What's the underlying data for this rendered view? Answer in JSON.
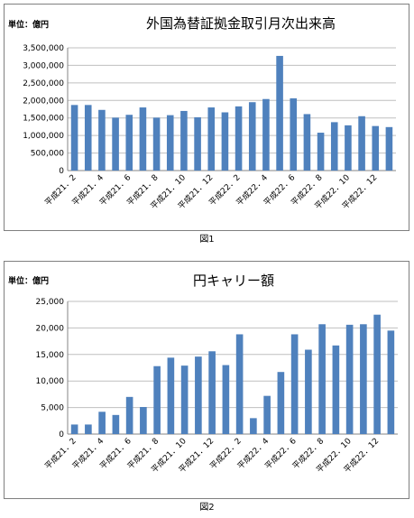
{
  "charts": [
    {
      "unit_label": "単位：億円",
      "caption": "図1"
    },
    {
      "unit_label": "単位：億円",
      "caption": "図2"
    }
  ],
  "chart_data": [
    {
      "type": "bar",
      "title": "外国為替証拠金取引月次出来高",
      "ylim": [
        0,
        3500000
      ],
      "yticks": [
        0,
        500000,
        1000000,
        1500000,
        2000000,
        2500000,
        3000000,
        3500000
      ],
      "ytick_labels": [
        "0",
        "500,000",
        "1,000,000",
        "1,500,000",
        "2,000,000",
        "2,500,000",
        "3,000,000",
        "3,500,000"
      ],
      "grid": true,
      "color": "#4f81bd",
      "tick_labels": [
        "平成21．2",
        "平成21．4",
        "平成21．6",
        "平成21．8",
        "平成21．10",
        "平成21．12",
        "平成22．2",
        "平成22．4",
        "平成22．6",
        "平成22．8",
        "平成22．10",
        "平成22．12"
      ],
      "tick_every": 2,
      "values": [
        1870000,
        1870000,
        1730000,
        1510000,
        1590000,
        1800000,
        1510000,
        1580000,
        1700000,
        1520000,
        1800000,
        1660000,
        1830000,
        1950000,
        2040000,
        3270000,
        2060000,
        1610000,
        1080000,
        1380000,
        1290000,
        1550000,
        1270000,
        1240000
      ]
    },
    {
      "type": "bar",
      "title": "円キャリー額",
      "ylim": [
        0,
        25000
      ],
      "yticks": [
        0,
        5000,
        10000,
        15000,
        20000,
        25000
      ],
      "ytick_labels": [
        "0",
        "5,000",
        "10,000",
        "15,000",
        "20,000",
        "25,000"
      ],
      "grid": true,
      "color": "#4f81bd",
      "tick_labels": [
        "平成21．2",
        "平成21．4",
        "平成21．6",
        "平成21．8",
        "平成21．10",
        "平成21．12",
        "平成22．2",
        "平成22．4",
        "平成22．6",
        "平成22．8",
        "平成22．10",
        "平成22．12"
      ],
      "tick_every": 2,
      "values": [
        1800,
        1800,
        4200,
        3600,
        7000,
        5100,
        12800,
        14400,
        12900,
        14600,
        15600,
        13000,
        18800,
        3000,
        7200,
        11700,
        18800,
        15900,
        20700,
        16700,
        20600,
        20700,
        22500,
        19500
      ]
    }
  ]
}
